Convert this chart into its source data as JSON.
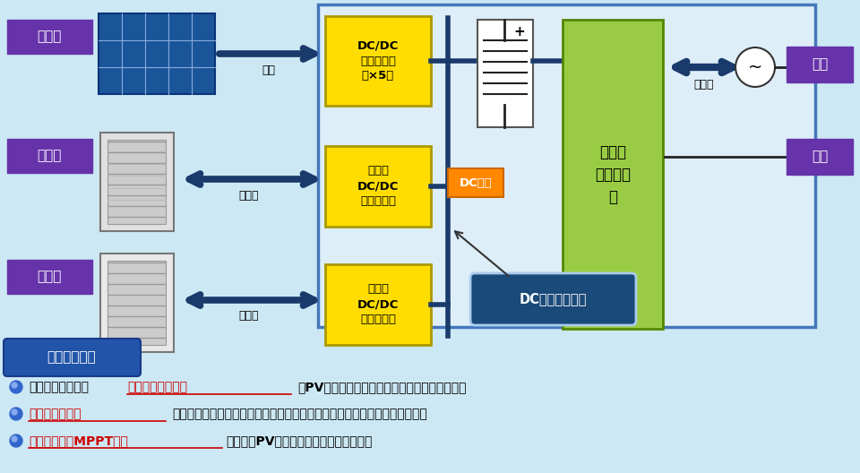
{
  "bg_color": "#cce8f4",
  "label_taiyo": "太陽光",
  "label_chikudenchi1": "蓄電池",
  "label_chikudenchi2": "蓄電池",
  "label_hatsuden": "発電",
  "label_juuden1": "充放電",
  "label_juuden2": "充放電",
  "label_juuden3": "充放電",
  "label_dc_dc1": "DC/DC\nコンバータ\n（×5）",
  "label_dc_dc2": "双方向\nDC/DC\nコンバータ",
  "label_dc_dc3": "双方向\nDC/DC\nコンバータ",
  "label_dcbus": "DCバス",
  "label_inverter": "双方向\nインバー\nタ",
  "label_keito": "系統",
  "label_jiritsu": "自立",
  "label_dcbus_ctrl": "DCバス制御技術",
  "label_tokuchou": "特徴ある制御",
  "bullet1_pre": "独自方式により、",
  "bullet1_red": "急激な電力変動時",
  "bullet1_black": "（PV日射変動等）にも安定した連携動作が可能",
  "bullet2_red": "高精度バス制御",
  "bullet2_black": "をベースに、多様な動作モード（　経済優先／環境優先／蓄電優先）を実現",
  "bullet3_red": "自立運転時のMPPT動作",
  "bullet3_black": "により、PV発電電力を最大限に利用可能",
  "purple_color": "#6633aa",
  "yellow_color": "#ffdd00",
  "green_color": "#99cc44",
  "dark_blue": "#1a3a6b",
  "orange_color": "#ff8800",
  "dark_teal": "#1a4a7a",
  "box_blue": "#2255aa"
}
